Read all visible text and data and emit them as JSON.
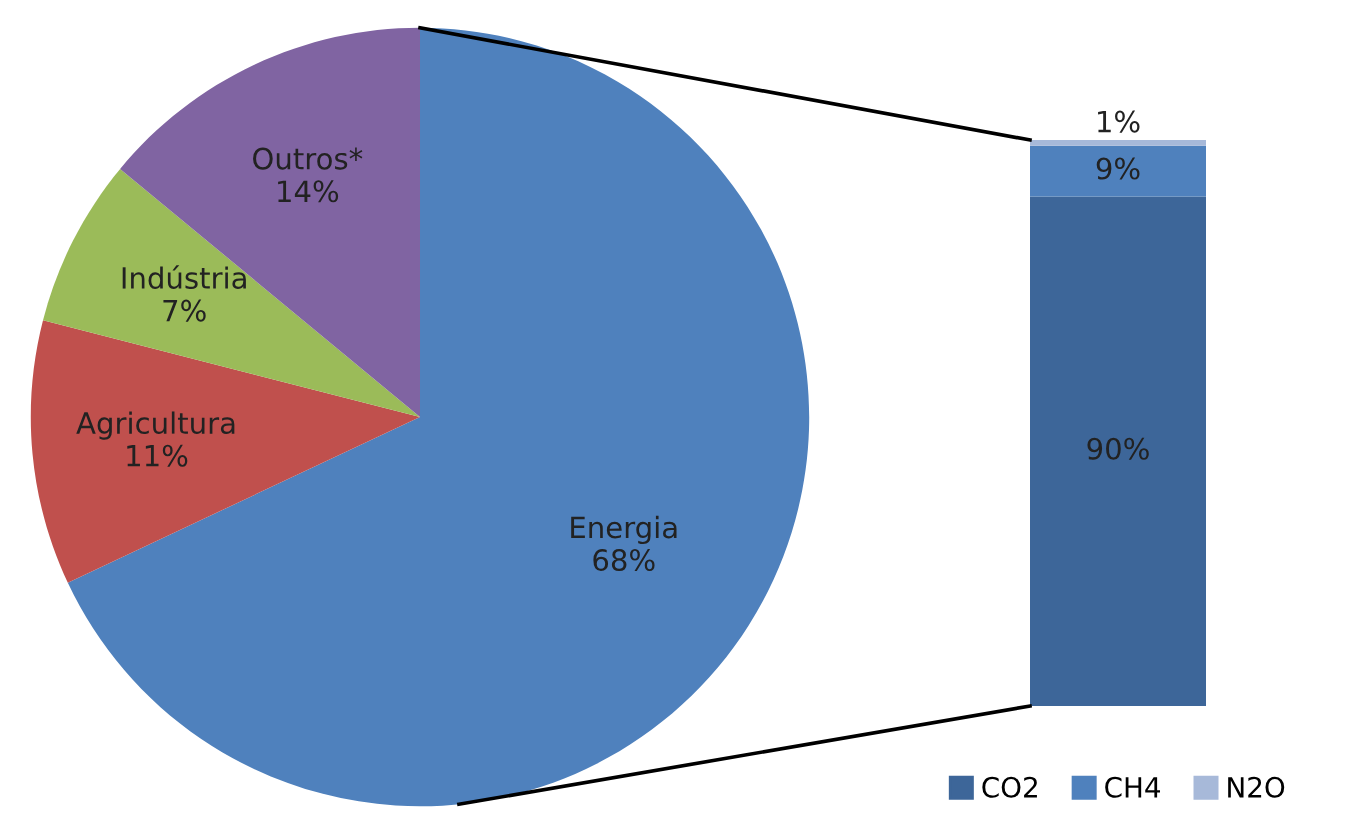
{
  "chart_data": [
    {
      "type": "pie",
      "categories": [
        "Energia",
        "Agricultura",
        "Indústria",
        "Outros*"
      ],
      "values": [
        68,
        11,
        7,
        14
      ],
      "colors": [
        "#4f81bd",
        "#c0504d",
        "#9bbb59",
        "#8064a2"
      ],
      "value_labels": [
        "68%",
        "11%",
        "7%",
        "14%"
      ]
    },
    {
      "type": "bar",
      "categories": [
        null
      ],
      "stacked": true,
      "legend": "bottom",
      "series": [
        {
          "name": "CO2",
          "color": "#3d6699",
          "values": [
            90
          ],
          "value_labels": [
            "90%"
          ]
        },
        {
          "name": "CH4",
          "color": "#4f81bd",
          "values": [
            9
          ],
          "value_labels": [
            "9%"
          ]
        },
        {
          "name": "N2O",
          "color": "#a7b9d9",
          "values": [
            1
          ],
          "value_labels": [
            "1%"
          ]
        }
      ]
    }
  ]
}
